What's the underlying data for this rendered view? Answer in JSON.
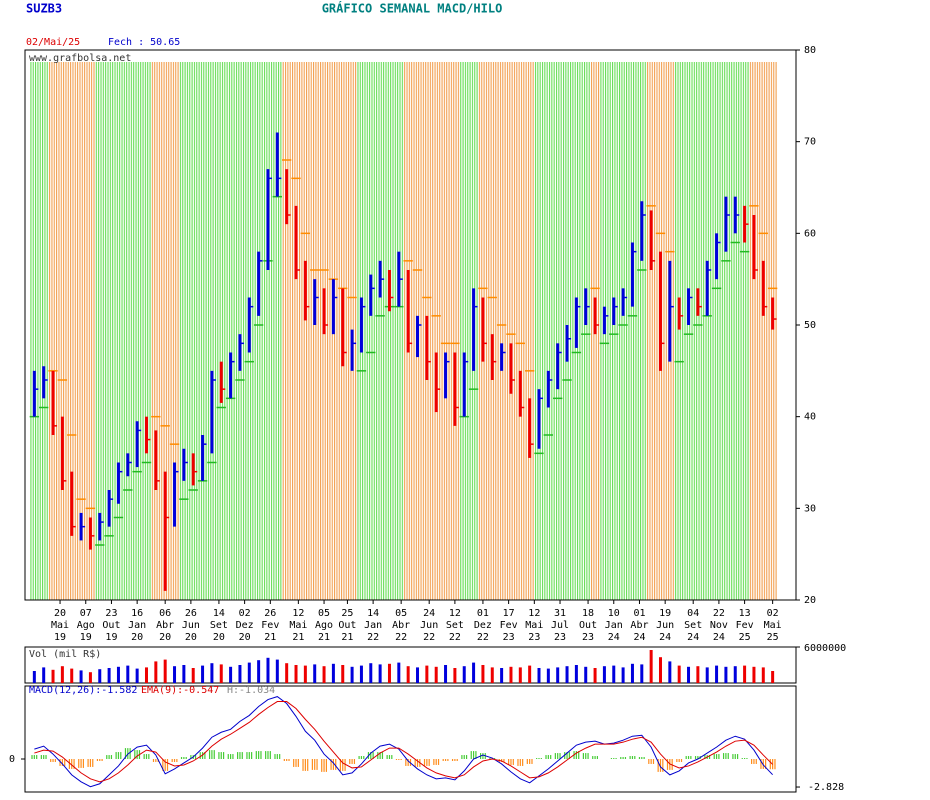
{
  "header": {
    "symbol": "SUZB3",
    "title": "GRÁFICO SEMANAL MACD/HILO",
    "date": "02/Mai/25",
    "close_label": "Fech : 50.65",
    "watermark": "www.grafbolsa.net"
  },
  "chart_data": {
    "type": "hilo",
    "x": [
      3,
      7,
      11,
      15,
      19,
      23,
      27,
      31,
      35,
      39,
      43,
      47,
      51,
      55,
      59,
      63,
      67,
      71,
      75,
      79,
      83,
      87,
      91,
      95,
      99,
      103,
      107,
      111,
      115,
      119,
      123,
      127,
      131,
      135,
      139,
      143,
      147,
      151,
      155,
      159,
      163,
      167,
      171,
      175,
      179,
      183,
      187,
      191,
      195,
      199,
      203,
      207,
      211,
      215,
      219,
      223,
      227,
      231,
      235,
      239,
      243,
      247,
      251,
      255,
      259,
      263,
      267,
      271,
      275,
      279,
      283,
      287,
      291,
      295,
      299,
      303,
      307,
      311,
      315,
      319
    ],
    "high": [
      45,
      45.5,
      45,
      40,
      34,
      29.5,
      29,
      29.5,
      32,
      35,
      36,
      39.5,
      40,
      38.5,
      34,
      35,
      36.5,
      36,
      38,
      45,
      46,
      47,
      49,
      53,
      58,
      67,
      71,
      67,
      63,
      57,
      55,
      54,
      55,
      54,
      49.5,
      53,
      55.5,
      57,
      56,
      58,
      56,
      51,
      51,
      47,
      47,
      47,
      47,
      54,
      53,
      49,
      48,
      48,
      45,
      42,
      43,
      45,
      48,
      50,
      53,
      54,
      53,
      52,
      53,
      54,
      59,
      63.5,
      62.5,
      58,
      57,
      53,
      54,
      54,
      57,
      60,
      64,
      64,
      63,
      62,
      57,
      53
    ],
    "low": [
      40,
      42,
      38,
      32,
      27,
      26.5,
      25.5,
      26.5,
      28,
      30.5,
      33.5,
      34.5,
      36,
      32,
      21,
      28,
      33,
      32.5,
      33,
      36,
      41.5,
      42,
      45,
      47,
      51,
      56,
      64,
      61,
      55,
      50.5,
      50,
      49,
      49,
      45.5,
      45,
      47,
      51,
      53,
      51.5,
      52,
      47,
      46.5,
      44,
      40.5,
      42,
      39,
      40,
      45,
      46,
      44,
      45,
      42.5,
      40,
      35.5,
      36.5,
      41,
      43,
      46,
      47.5,
      50,
      49,
      49,
      50,
      51,
      52,
      57,
      56,
      45,
      46,
      49.5,
      50,
      51,
      51,
      55,
      58,
      60,
      59,
      55,
      51,
      49.5
    ],
    "close": [
      43,
      44,
      39,
      33,
      28,
      28,
      27,
      28.5,
      31,
      34,
      35,
      38.5,
      37.5,
      33,
      29,
      34,
      35,
      34,
      37,
      44,
      43,
      46,
      48,
      52,
      57,
      66,
      66,
      62,
      56,
      52,
      53,
      50,
      53,
      47,
      48,
      52,
      54,
      55,
      53,
      55,
      48,
      50,
      46,
      43,
      46,
      41,
      46,
      52,
      48,
      46,
      47,
      44,
      41,
      37,
      42,
      44,
      47,
      48.5,
      52,
      52,
      50,
      51,
      52,
      53,
      58,
      62,
      57,
      48,
      52,
      51,
      53,
      52,
      56,
      59,
      62,
      62,
      61,
      56,
      52,
      50.65
    ],
    "hilo": [
      40,
      41,
      45,
      44,
      38,
      31,
      30,
      26,
      27,
      29,
      32,
      34,
      35,
      40,
      39,
      37,
      31,
      32,
      33,
      35,
      41,
      42,
      44,
      46,
      50,
      57,
      64,
      68,
      66,
      60,
      56,
      56,
      55,
      54,
      53,
      45,
      47,
      51,
      52,
      52,
      57,
      56,
      53,
      51,
      48,
      48,
      40,
      43,
      54,
      53,
      50,
      49,
      48,
      45,
      36,
      38,
      42,
      44,
      47,
      49,
      54,
      48,
      49,
      50,
      51,
      56,
      63,
      60,
      58,
      46,
      49,
      50,
      51,
      54,
      57,
      59,
      58,
      63,
      60,
      54
    ],
    "colors": {
      "up": "#0000dd",
      "down": "#ee0000",
      "hilo_up": "#22bb22",
      "hilo_down": "#ff8c00",
      "band_up": "#66dd55",
      "band_down": "#f2a050"
    },
    "xlim": [
      -1,
      329
    ],
    "ylim": [
      20,
      80
    ],
    "yticks": [
      20,
      30,
      40,
      50,
      60,
      70,
      80
    ],
    "xticks": [
      {
        "value": 14,
        "label": [
          "20",
          "Mai",
          "19"
        ]
      },
      {
        "value": 25,
        "label": [
          "07",
          "Ago",
          "19"
        ]
      },
      {
        "value": 36,
        "label": [
          "23",
          "Out",
          "19"
        ]
      },
      {
        "value": 47,
        "label": [
          "16",
          "Jan",
          "20"
        ]
      },
      {
        "value": 59,
        "label": [
          "06",
          "Abr",
          "20"
        ]
      },
      {
        "value": 70,
        "label": [
          "26",
          "Jun",
          "20"
        ]
      },
      {
        "value": 82,
        "label": [
          "14",
          "Set",
          "20"
        ]
      },
      {
        "value": 93,
        "label": [
          "02",
          "Dez",
          "20"
        ]
      },
      {
        "value": 104,
        "label": [
          "26",
          "Fev",
          "21"
        ]
      },
      {
        "value": 116,
        "label": [
          "12",
          "Mai",
          "21"
        ]
      },
      {
        "value": 127,
        "label": [
          "05",
          "Ago",
          "21"
        ]
      },
      {
        "value": 137,
        "label": [
          "25",
          "Out",
          "21"
        ]
      },
      {
        "value": 148,
        "label": [
          "14",
          "Jan",
          "22"
        ]
      },
      {
        "value": 160,
        "label": [
          "05",
          "Abr",
          "22"
        ]
      },
      {
        "value": 172,
        "label": [
          "24",
          "Jun",
          "22"
        ]
      },
      {
        "value": 183,
        "label": [
          "12",
          "Set",
          "22"
        ]
      },
      {
        "value": 195,
        "label": [
          "01",
          "Dez",
          "22"
        ]
      },
      {
        "value": 206,
        "label": [
          "17",
          "Fev",
          "23"
        ]
      },
      {
        "value": 217,
        "label": [
          "12",
          "Mai",
          "23"
        ]
      },
      {
        "value": 228,
        "label": [
          "31",
          "Jul",
          "23"
        ]
      },
      {
        "value": 240,
        "label": [
          "18",
          "Out",
          "23"
        ]
      },
      {
        "value": 251,
        "label": [
          "10",
          "Jan",
          "24"
        ]
      },
      {
        "value": 262,
        "label": [
          "01",
          "Abr",
          "24"
        ]
      },
      {
        "value": 273,
        "label": [
          "19",
          "Jun",
          "24"
        ]
      },
      {
        "value": 285,
        "label": [
          "04",
          "Set",
          "24"
        ]
      },
      {
        "value": 296,
        "label": [
          "22",
          "Nov",
          "24"
        ]
      },
      {
        "value": 307,
        "label": [
          "13",
          "Fev",
          "25"
        ]
      },
      {
        "value": 319,
        "label": [
          "02",
          "Mai",
          "25"
        ]
      }
    ],
    "volume": {
      "title": "Vol (mil R$)",
      "values": [
        2000000,
        2600000,
        2200000,
        2800000,
        2400000,
        2100000,
        1800000,
        2300000,
        2500000,
        2700000,
        2900000,
        2400000,
        2600000,
        3600000,
        3900000,
        2800000,
        3000000,
        2500000,
        2900000,
        3300000,
        3100000,
        2700000,
        3000000,
        3400000,
        3800000,
        4200000,
        3900000,
        3300000,
        3000000,
        2900000,
        3100000,
        2800000,
        3200000,
        3000000,
        2700000,
        2900000,
        3300000,
        3100000,
        3200000,
        3400000,
        2800000,
        2600000,
        2900000,
        2700000,
        3000000,
        2500000,
        2800000,
        3400000,
        3000000,
        2600000,
        2500000,
        2700000,
        2600000,
        2900000,
        2500000,
        2400000,
        2600000,
        2800000,
        3000000,
        2700000,
        2500000,
        2800000,
        2900000,
        2600000,
        3200000,
        3100000,
        5500000,
        4300000,
        3600000,
        2900000,
        2700000,
        2800000,
        2600000,
        2900000,
        2700000,
        2800000,
        2900000,
        2700000,
        2600000,
        2000000
      ],
      "ylim": [
        0,
        6000000
      ],
      "yticks": [
        6000000
      ]
    },
    "macd": {
      "series": [
        {
          "name": "MACD(12,26):-1.582",
          "color": "#0000cc",
          "values": [
            1.0,
            1.3,
            0.5,
            -0.5,
            -1.6,
            -2.3,
            -2.8,
            -2.5,
            -1.6,
            -0.7,
            0.5,
            1.2,
            1.4,
            0.4,
            -1.5,
            -1.0,
            -0.4,
            0.2,
            1.1,
            2.2,
            2.7,
            3.0,
            3.8,
            4.4,
            5.3,
            6.0,
            6.3,
            5.6,
            4.3,
            2.8,
            1.9,
            0.5,
            -0.4,
            -1.6,
            -1.4,
            -0.5,
            0.6,
            1.3,
            1.5,
            1.0,
            -0.2,
            -1.0,
            -1.6,
            -2.0,
            -1.9,
            -2.1,
            -1.2,
            0.0,
            0.4,
            0.1,
            -0.5,
            -1.3,
            -2.0,
            -2.4,
            -1.7,
            -1.0,
            -0.2,
            0.6,
            1.4,
            1.7,
            1.8,
            1.5,
            1.6,
            1.9,
            2.3,
            2.4,
            1.2,
            -0.8,
            -1.6,
            -1.2,
            -0.4,
            0.0,
            0.6,
            1.2,
            1.9,
            2.3,
            2.0,
            0.9,
            -0.6,
            -1.582
          ]
        },
        {
          "name": "EMA(9):-0.547",
          "color": "#dd0000",
          "values": [
            0.6,
            0.9,
            0.8,
            0.2,
            -0.6,
            -1.4,
            -2.0,
            -2.3,
            -2.0,
            -1.4,
            -0.6,
            0.3,
            0.9,
            0.7,
            -0.3,
            -0.7,
            -0.6,
            -0.2,
            0.4,
            1.3,
            2.0,
            2.5,
            3.1,
            3.7,
            4.5,
            5.2,
            5.8,
            5.8,
            5.1,
            4.0,
            3.0,
            1.8,
            0.7,
            -0.4,
            -0.9,
            -0.8,
            -0.1,
            0.6,
            1.1,
            1.1,
            0.5,
            -0.2,
            -0.9,
            -1.4,
            -1.7,
            -1.9,
            -1.6,
            -0.8,
            -0.2,
            0.0,
            -0.2,
            -0.7,
            -1.3,
            -1.9,
            -1.8,
            -1.4,
            -0.8,
            -0.1,
            0.6,
            1.1,
            1.5,
            1.5,
            1.5,
            1.7,
            2.0,
            2.2,
            1.7,
            0.5,
            -0.5,
            -0.9,
            -0.7,
            -0.3,
            0.2,
            0.7,
            1.3,
            1.8,
            1.9,
            1.4,
            0.4,
            -0.547
          ]
        }
      ],
      "histogram": {
        "name": "H:-1.034",
        "color": "#888888",
        "colors": [
          "#44cc33",
          "#ff8c1a"
        ],
        "values": [
          0.4,
          0.4,
          -0.3,
          -0.7,
          -1.0,
          -0.9,
          -0.8,
          -0.2,
          0.4,
          0.7,
          1.1,
          0.9,
          0.5,
          -0.3,
          -1.2,
          -0.3,
          0.2,
          0.4,
          0.7,
          0.9,
          0.7,
          0.5,
          0.7,
          0.7,
          0.8,
          0.8,
          0.5,
          -0.2,
          -0.8,
          -1.2,
          -1.1,
          -1.3,
          -1.1,
          -1.2,
          -0.5,
          0.3,
          0.7,
          0.7,
          0.4,
          -0.1,
          -0.7,
          -0.8,
          -0.7,
          -0.6,
          -0.2,
          -0.2,
          0.4,
          0.8,
          0.6,
          0.1,
          -0.3,
          -0.6,
          -0.7,
          -0.5,
          0.1,
          0.4,
          0.6,
          0.7,
          0.8,
          0.6,
          0.3,
          0.0,
          0.1,
          0.2,
          0.3,
          0.2,
          -0.5,
          -1.3,
          -1.1,
          -0.3,
          0.3,
          0.3,
          0.4,
          0.5,
          0.6,
          0.5,
          0.1,
          -0.5,
          -1.0,
          -1.034
        ]
      },
      "ylim": [
        -3.33,
        7.37
      ],
      "yticks": [
        0,
        -2.828
      ]
    }
  }
}
